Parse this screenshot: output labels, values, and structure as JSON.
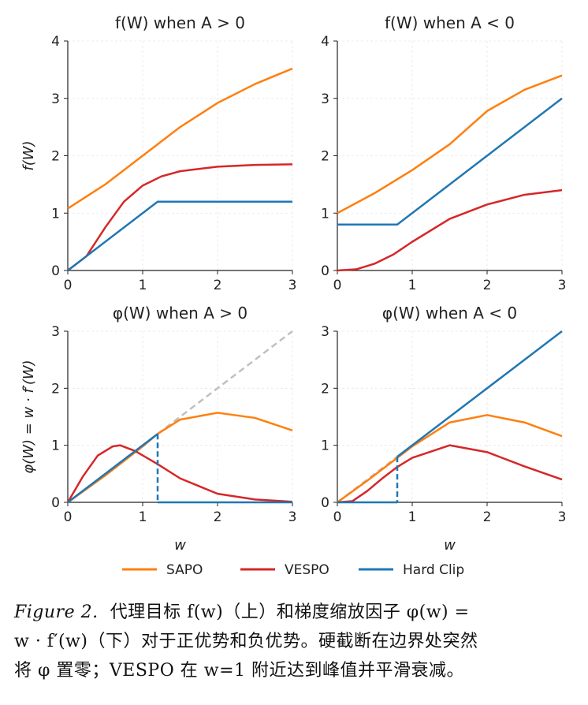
{
  "colors": {
    "SAPO": "#ff7f0e",
    "VESPO": "#d62728",
    "Hard Clip": "#1f77b4",
    "reference": "#c0c0c0",
    "grid": "#e6e6e6"
  },
  "chart_data": [
    {
      "type": "line",
      "title": "f(W) when A > 0",
      "xlabel": "",
      "ylabel": "f(W)",
      "xlim": [
        0,
        3
      ],
      "ylim": [
        0,
        4
      ],
      "xticks": [
        0,
        1,
        2,
        3
      ],
      "yticks": [
        0,
        1,
        2,
        3,
        4
      ],
      "grid": true,
      "series": [
        {
          "name": "SAPO",
          "x": [
            0,
            0.5,
            1,
            1.5,
            2,
            2.5,
            3
          ],
          "y": [
            1.08,
            1.5,
            2.0,
            2.5,
            2.92,
            3.25,
            3.52
          ]
        },
        {
          "name": "VESPO",
          "x": [
            0,
            0.25,
            0.5,
            0.75,
            1,
            1.25,
            1.5,
            2,
            2.5,
            3
          ],
          "y": [
            0,
            0.25,
            0.75,
            1.2,
            1.48,
            1.64,
            1.73,
            1.81,
            1.84,
            1.85
          ]
        },
        {
          "name": "Hard Clip",
          "x": [
            0,
            1.2,
            3
          ],
          "y": [
            0,
            1.2,
            1.2
          ]
        }
      ]
    },
    {
      "type": "line",
      "title": "f(W) when A < 0",
      "xlabel": "",
      "ylabel": "",
      "xlim": [
        0,
        3
      ],
      "ylim": [
        0,
        4
      ],
      "xticks": [
        0,
        1,
        2,
        3
      ],
      "yticks": [
        0,
        1,
        2,
        3,
        4
      ],
      "grid": true,
      "series": [
        {
          "name": "SAPO",
          "x": [
            0,
            0.5,
            1,
            1.5,
            2,
            2.5,
            3
          ],
          "y": [
            1.0,
            1.35,
            1.75,
            2.2,
            2.78,
            3.15,
            3.4
          ]
        },
        {
          "name": "VESPO",
          "x": [
            0,
            0.25,
            0.5,
            0.75,
            1,
            1.5,
            2,
            2.5,
            3
          ],
          "y": [
            0,
            0.02,
            0.12,
            0.28,
            0.5,
            0.9,
            1.15,
            1.32,
            1.4
          ]
        },
        {
          "name": "Hard Clip",
          "x": [
            0,
            0.8,
            3
          ],
          "y": [
            0.8,
            0.8,
            3
          ]
        }
      ]
    },
    {
      "type": "line",
      "title": "φ(W) when A > 0",
      "xlabel": "w",
      "ylabel": "φ(W) = w · f′(W)",
      "xlim": [
        0,
        3
      ],
      "ylim": [
        0,
        3
      ],
      "xticks": [
        0,
        1,
        2,
        3
      ],
      "yticks": [
        0,
        1,
        2,
        3
      ],
      "grid": true,
      "reference": {
        "x": [
          0,
          3
        ],
        "y": [
          0,
          3
        ]
      },
      "clip_drop": {
        "x": 1.2,
        "from": 1.2
      },
      "series": [
        {
          "name": "SAPO",
          "x": [
            0,
            0.5,
            1,
            1.2,
            1.5,
            2,
            2.5,
            3
          ],
          "y": [
            0,
            0.47,
            0.98,
            1.2,
            1.45,
            1.57,
            1.48,
            1.26
          ]
        },
        {
          "name": "VESPO",
          "x": [
            0,
            0.2,
            0.4,
            0.6,
            0.7,
            0.9,
            1.2,
            1.5,
            2,
            2.5,
            3
          ],
          "y": [
            0,
            0.45,
            0.82,
            0.98,
            1.0,
            0.9,
            0.67,
            0.42,
            0.15,
            0.05,
            0.01
          ]
        },
        {
          "name": "Hard Clip",
          "x": [
            0,
            1.2,
            1.2,
            3
          ],
          "y": [
            0,
            1.2,
            0,
            0
          ]
        }
      ]
    },
    {
      "type": "line",
      "title": "φ(W) when A < 0",
      "xlabel": "w",
      "ylabel": "",
      "xlim": [
        0,
        3
      ],
      "ylim": [
        0,
        3
      ],
      "xticks": [
        0,
        1,
        2,
        3
      ],
      "yticks": [
        0,
        1,
        2,
        3
      ],
      "grid": true,
      "reference": {
        "x": [
          0,
          0.8
        ],
        "y": [
          0,
          0.8
        ]
      },
      "clip_drop": {
        "x": 0.8,
        "from": 0.8
      },
      "series": [
        {
          "name": "SAPO",
          "x": [
            0,
            0.4,
            0.8,
            1,
            1.5,
            2,
            2.5,
            3
          ],
          "y": [
            0,
            0.38,
            0.78,
            0.98,
            1.4,
            1.53,
            1.4,
            1.16
          ]
        },
        {
          "name": "VESPO",
          "x": [
            0,
            0.2,
            0.4,
            0.6,
            0.8,
            1,
            1.5,
            2,
            2.5,
            3
          ],
          "y": [
            0,
            0.02,
            0.2,
            0.42,
            0.62,
            0.78,
            1.0,
            0.88,
            0.63,
            0.4
          ]
        },
        {
          "name": "Hard Clip",
          "x": [
            0,
            0.8,
            0.8,
            3
          ],
          "y": [
            0,
            0,
            0.8,
            3
          ]
        }
      ]
    }
  ],
  "legend": {
    "placement": "bottom-center",
    "items": [
      "SAPO",
      "VESPO",
      "Hard Clip"
    ]
  },
  "caption": {
    "lead": "Figure 2.",
    "lines": [
      "代理目标 f(w)（上）和梯度缩放因子 φ(w) =",
      "w · f′(w)（下）对于正优势和负优势。硬截断在边界处突然",
      "将 φ 置零；VESPO 在 w=1 附近达到峰值并平滑衰减。"
    ]
  }
}
